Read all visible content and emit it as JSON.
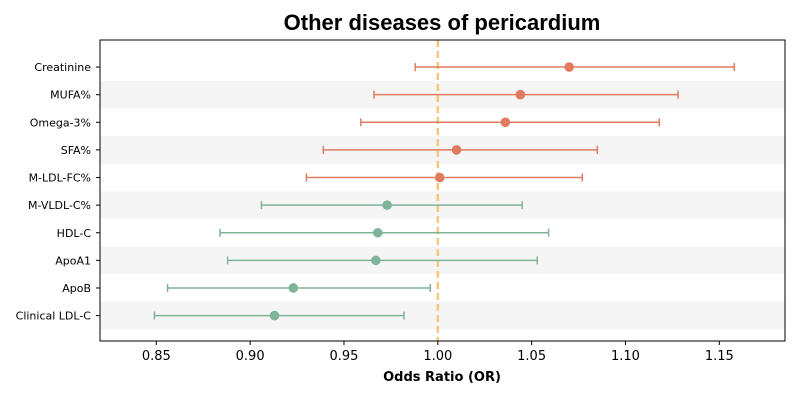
{
  "chart_data": {
    "type": "forest",
    "title": "Other diseases of pericardium",
    "xlabel": "Odds Ratio (OR)",
    "ylabel": "",
    "xlim": [
      0.82,
      1.185
    ],
    "xticks": [
      0.85,
      0.9,
      0.95,
      1.0,
      1.05,
      1.1,
      1.15
    ],
    "reference_line": 1.0,
    "grid": false,
    "row_banding": true,
    "colors": {
      "above_one": "#e07b5f",
      "below_one": "#7fb39a",
      "reference": "#f5c97a",
      "band": "#f5f5f5"
    },
    "rows": [
      {
        "label": "Creatinine",
        "or": 1.07,
        "lower": 0.988,
        "upper": 1.158,
        "group": "above_one"
      },
      {
        "label": "MUFA%",
        "or": 1.044,
        "lower": 0.966,
        "upper": 1.128,
        "group": "above_one"
      },
      {
        "label": "Omega-3%",
        "or": 1.036,
        "lower": 0.959,
        "upper": 1.118,
        "group": "above_one"
      },
      {
        "label": "SFA%",
        "or": 1.01,
        "lower": 0.939,
        "upper": 1.085,
        "group": "above_one"
      },
      {
        "label": "M-LDL-FC%",
        "or": 1.001,
        "lower": 0.93,
        "upper": 1.077,
        "group": "above_one"
      },
      {
        "label": "M-VLDL-C%",
        "or": 0.973,
        "lower": 0.906,
        "upper": 1.045,
        "group": "below_one"
      },
      {
        "label": "HDL-C",
        "or": 0.968,
        "lower": 0.884,
        "upper": 1.059,
        "group": "below_one"
      },
      {
        "label": "ApoA1",
        "or": 0.967,
        "lower": 0.888,
        "upper": 1.053,
        "group": "below_one"
      },
      {
        "label": "ApoB",
        "or": 0.923,
        "lower": 0.856,
        "upper": 0.996,
        "group": "below_one"
      },
      {
        "label": "Clinical LDL-C",
        "or": 0.913,
        "lower": 0.849,
        "upper": 0.982,
        "group": "below_one"
      }
    ]
  }
}
